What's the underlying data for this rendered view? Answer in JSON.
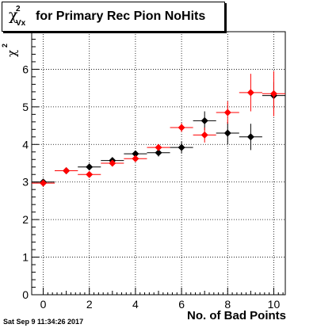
{
  "title": {
    "symbol": "χ",
    "superscript": "2",
    "subscript": "Vx",
    "text": "for Primary Rec Pion NoHits"
  },
  "footer": "Sat Sep  9 11:34:26 2017",
  "colors": {
    "series_black": "#000000",
    "series_red": "#ff0000",
    "grid": "#000000"
  },
  "chart_data": {
    "type": "scatter",
    "title": "χ²_Vx for Primary Rec Pion NoHits",
    "xlabel": "No. of Bad Points",
    "ylabel": "χ²",
    "xlim": [
      -0.5,
      10.5
    ],
    "ylim": [
      0,
      7
    ],
    "grid": true,
    "xticks": [
      0,
      2,
      4,
      6,
      8,
      10
    ],
    "yticks": [
      0,
      1,
      2,
      3,
      4,
      5,
      6
    ],
    "series": [
      {
        "color": "#000000",
        "x": [
          0,
          1,
          2,
          3,
          4,
          5,
          6,
          7,
          8,
          9,
          10
        ],
        "y": [
          3.0,
          3.3,
          3.4,
          3.57,
          3.75,
          3.78,
          3.92,
          4.63,
          4.3,
          4.2,
          5.3
        ],
        "yerr": [
          0.03,
          0.03,
          0.04,
          0.05,
          0.07,
          0.1,
          0.15,
          0.25,
          0.3,
          0.35,
          0.35
        ]
      },
      {
        "color": "#ff0000",
        "x": [
          0,
          1,
          2,
          3,
          4,
          5,
          6,
          7,
          8,
          9,
          10
        ],
        "y": [
          2.97,
          3.3,
          3.2,
          3.5,
          3.62,
          3.92,
          4.45,
          4.25,
          4.85,
          5.38,
          5.35
        ],
        "yerr": [
          0.02,
          0.02,
          0.04,
          0.05,
          0.06,
          0.08,
          0.12,
          0.2,
          0.3,
          0.5,
          0.6
        ]
      }
    ]
  }
}
